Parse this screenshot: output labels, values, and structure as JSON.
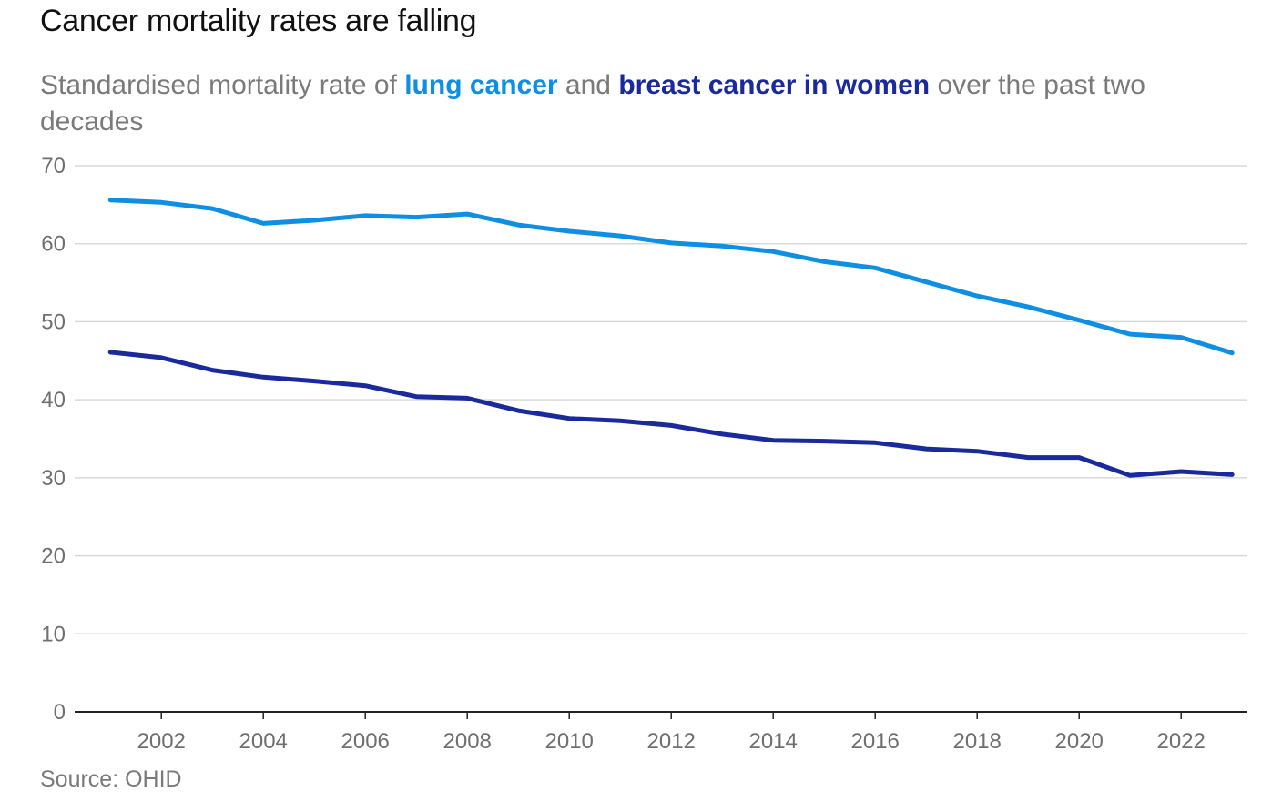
{
  "title": "Cancer mortality rates are falling",
  "subtitle": {
    "prefix": "Standardised mortality rate of ",
    "lung_label": "lung cancer",
    "middle": " and ",
    "breast_label": "breast cancer in women",
    "suffix": " over the past two decades"
  },
  "source": "Source: OHID",
  "colors": {
    "lung": "#0e8fe3",
    "breast": "#1a2a9c",
    "grid": "#d9d9d9",
    "axis": "#222222"
  },
  "chart_data": {
    "type": "line",
    "title": "Cancer mortality rates are falling",
    "xlabel": "",
    "ylabel": "",
    "xlim": [
      2000.3,
      2023.3
    ],
    "ylim": [
      0,
      70
    ],
    "x_ticks": [
      2002,
      2004,
      2006,
      2008,
      2010,
      2012,
      2014,
      2016,
      2018,
      2020,
      2022
    ],
    "y_ticks": [
      0,
      10,
      20,
      30,
      40,
      50,
      60,
      70
    ],
    "grid": true,
    "x": [
      2001,
      2002,
      2003,
      2004,
      2005,
      2006,
      2007,
      2008,
      2009,
      2010,
      2011,
      2012,
      2013,
      2014,
      2015,
      2016,
      2017,
      2018,
      2019,
      2020,
      2021,
      2022,
      2023
    ],
    "series": [
      {
        "name": "lung cancer",
        "color": "#0e8fe3",
        "values": [
          65.6,
          65.3,
          64.5,
          62.6,
          63.0,
          63.6,
          63.4,
          63.8,
          62.4,
          61.6,
          61.0,
          60.1,
          59.7,
          59.0,
          57.7,
          56.9,
          55.1,
          53.3,
          51.9,
          50.2,
          48.4,
          48.0,
          46.0
        ]
      },
      {
        "name": "breast cancer in women",
        "color": "#1a2a9c",
        "values": [
          46.1,
          45.4,
          43.8,
          42.9,
          42.4,
          41.8,
          40.4,
          40.2,
          38.6,
          37.6,
          37.3,
          36.7,
          35.6,
          34.8,
          34.7,
          34.5,
          33.7,
          33.4,
          32.6,
          32.6,
          30.3,
          30.8,
          30.4
        ]
      }
    ]
  }
}
